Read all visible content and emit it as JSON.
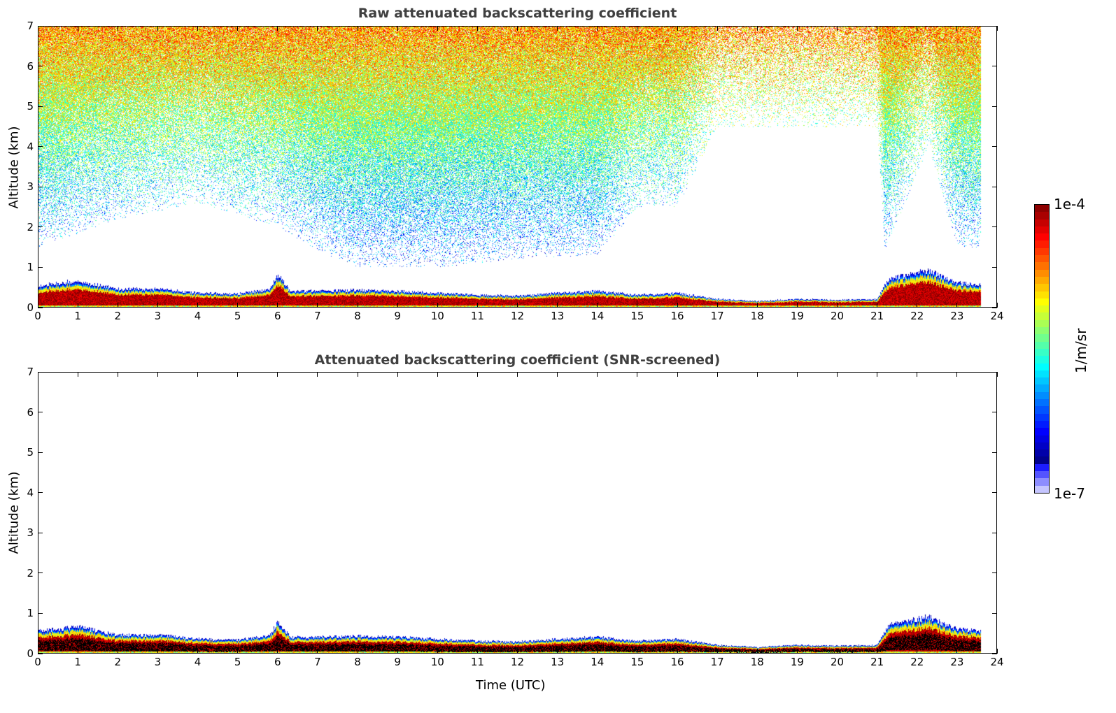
{
  "chart_data": [
    {
      "type": "heatmap",
      "title": "Raw attenuated backscattering coefficient",
      "xlabel": "",
      "ylabel": "Altitude (km)",
      "xlim": [
        0,
        24
      ],
      "ylim": [
        0,
        7
      ],
      "xticks": [
        0,
        1,
        2,
        3,
        4,
        5,
        6,
        7,
        8,
        9,
        10,
        11,
        12,
        13,
        14,
        15,
        16,
        17,
        18,
        19,
        20,
        21,
        22,
        23,
        24
      ],
      "yticks": [
        0,
        1,
        2,
        3,
        4,
        5,
        6,
        7
      ],
      "data_end_hour": 23.6,
      "layer_top_km": {
        "hours": [
          0,
          1,
          2,
          3,
          4,
          5,
          5.8,
          6,
          6.3,
          7,
          8,
          9,
          10,
          11,
          12,
          13,
          14,
          15,
          16,
          17,
          18,
          19,
          20,
          21,
          21.3,
          22,
          22.3,
          23,
          23.6
        ],
        "values": [
          0.55,
          0.65,
          0.45,
          0.45,
          0.35,
          0.33,
          0.45,
          0.8,
          0.4,
          0.4,
          0.42,
          0.4,
          0.35,
          0.3,
          0.28,
          0.35,
          0.4,
          0.3,
          0.35,
          0.2,
          0.15,
          0.2,
          0.18,
          0.2,
          0.7,
          0.85,
          0.9,
          0.6,
          0.55
        ]
      },
      "noise_floor_km": {
        "hours": [
          0,
          2,
          4,
          6,
          7,
          8,
          10,
          12,
          14,
          15,
          16,
          17,
          21,
          21.2,
          22.3,
          23,
          23.6
        ],
        "values": [
          1.5,
          2.2,
          2.6,
          2.0,
          1.4,
          1.0,
          1.0,
          1.2,
          1.3,
          2.5,
          2.5,
          4.5,
          4.5,
          1.4,
          4.0,
          1.5,
          1.5
        ]
      }
    },
    {
      "type": "heatmap",
      "title": "Attenuated backscattering coefficient (SNR-screened)",
      "xlabel": "Time (UTC)",
      "ylabel": "Altitude (km)",
      "xlim": [
        0,
        24
      ],
      "ylim": [
        0,
        7
      ],
      "xticks": [
        0,
        1,
        2,
        3,
        4,
        5,
        6,
        7,
        8,
        9,
        10,
        11,
        12,
        13,
        14,
        15,
        16,
        17,
        18,
        19,
        20,
        21,
        22,
        23,
        24
      ],
      "yticks": [
        0,
        1,
        2,
        3,
        4,
        5,
        6,
        7
      ],
      "data_end_hour": 23.6
    }
  ],
  "colorbar": {
    "label": "1/m/sr",
    "max_label": "1e-4",
    "min_label": "1e-7",
    "log_range": [
      -7,
      -4
    ]
  }
}
